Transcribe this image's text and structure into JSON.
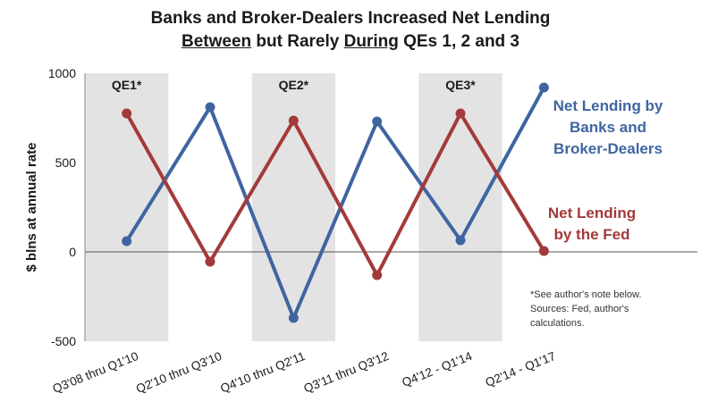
{
  "title": {
    "line1": "Banks and Broker-Dealers Increased Net Lending",
    "line2_word1": "Between",
    "line2_mid": " but Rarely ",
    "line2_word2": "During",
    "line2_end": " QEs 1, 2 and 3"
  },
  "note": {
    "line1": "*See author's note below.",
    "line2": "Sources: Fed, author's",
    "line3": "calculations."
  },
  "chart_data": {
    "type": "line",
    "ylabel": "$ blns at annual rate",
    "ylim": [
      -500,
      1000
    ],
    "yticks": [
      -500,
      0,
      500,
      1000
    ],
    "categories": [
      "Q3'08 thru Q1'10",
      "Q2'10 thru Q3'10",
      "Q4'10 thru Q2'11",
      "Q3'11 thru Q3'12",
      "Q4'12 - Q1'14",
      "Q2'14 - Q1'17"
    ],
    "shaded_periods": [
      {
        "label": "QE1*",
        "category_index": 0
      },
      {
        "label": "QE2*",
        "category_index": 2
      },
      {
        "label": "QE3*",
        "category_index": 4
      }
    ],
    "series": [
      {
        "name": "Net Lending by Banks and Broker-Dealers",
        "label_lines": [
          "Net Lending by",
          "Banks and",
          "Broker-Dealers"
        ],
        "color": "#3F65A0",
        "values": [
          60,
          810,
          -370,
          730,
          65,
          920
        ]
      },
      {
        "name": "Net Lending by the Fed",
        "label_lines": [
          "Net Lending",
          "by the Fed"
        ],
        "color": "#A33A3A",
        "values": [
          775,
          -55,
          735,
          -130,
          775,
          5
        ]
      }
    ]
  }
}
